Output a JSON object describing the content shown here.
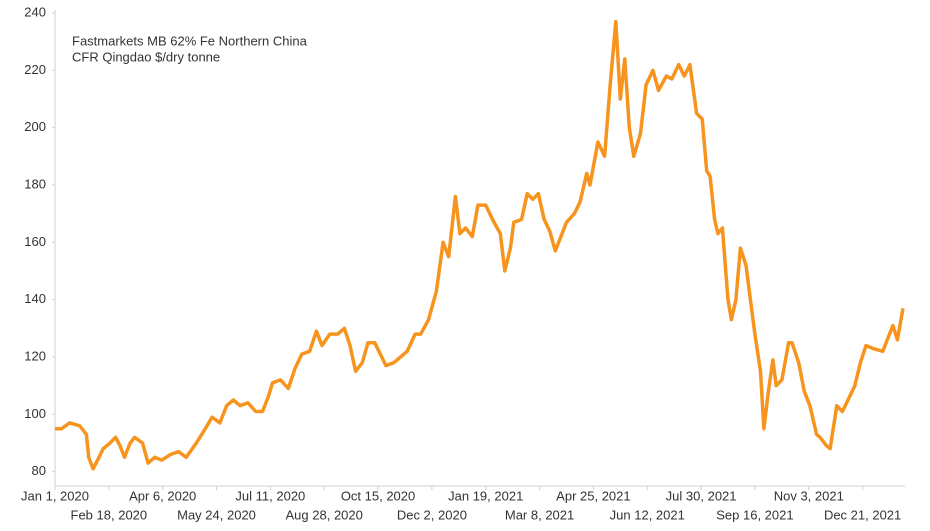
{
  "chart_data": {
    "type": "line",
    "annotation_lines": [
      "Fastmarkets MB 62% Fe Northern China",
      "CFR Qingdao $/dry tonne"
    ],
    "x": [
      "2020-01-01",
      "2020-01-07",
      "2020-01-14",
      "2020-01-23",
      "2020-01-29",
      "2020-01-31",
      "2020-02-04",
      "2020-02-08",
      "2020-02-13",
      "2020-02-19",
      "2020-02-24",
      "2020-02-28",
      "2020-03-03",
      "2020-03-08",
      "2020-03-12",
      "2020-03-19",
      "2020-03-24",
      "2020-03-30",
      "2020-04-05",
      "2020-04-13",
      "2020-04-20",
      "2020-04-27",
      "2020-05-06",
      "2020-05-14",
      "2020-05-20",
      "2020-05-27",
      "2020-06-02",
      "2020-06-08",
      "2020-06-14",
      "2020-06-21",
      "2020-06-28",
      "2020-07-04",
      "2020-07-09",
      "2020-07-13",
      "2020-07-20",
      "2020-07-27",
      "2020-08-02",
      "2020-08-08",
      "2020-08-15",
      "2020-08-21",
      "2020-08-26",
      "2020-09-02",
      "2020-09-09",
      "2020-09-15",
      "2020-09-20",
      "2020-09-25",
      "2020-10-01",
      "2020-10-06",
      "2020-10-12",
      "2020-10-17",
      "2020-10-22",
      "2020-10-29",
      "2020-11-04",
      "2020-11-10",
      "2020-11-17",
      "2020-11-22",
      "2020-11-29",
      "2020-12-06",
      "2020-12-12",
      "2020-12-17",
      "2020-12-23",
      "2020-12-27",
      "2021-01-01",
      "2021-01-07",
      "2021-01-12",
      "2021-01-19",
      "2021-01-25",
      "2021-02-01",
      "2021-02-05",
      "2021-02-10",
      "2021-02-13",
      "2021-02-20",
      "2021-02-25",
      "2021-03-02",
      "2021-03-07",
      "2021-03-12",
      "2021-03-17",
      "2021-03-22",
      "2021-03-26",
      "2021-04-01",
      "2021-04-08",
      "2021-04-13",
      "2021-04-19",
      "2021-04-22",
      "2021-04-29",
      "2021-05-05",
      "2021-05-10",
      "2021-05-15",
      "2021-05-19",
      "2021-05-23",
      "2021-05-27",
      "2021-05-31",
      "2021-06-06",
      "2021-06-11",
      "2021-06-17",
      "2021-06-22",
      "2021-06-29",
      "2021-07-04",
      "2021-07-10",
      "2021-07-15",
      "2021-07-20",
      "2021-07-26",
      "2021-07-31",
      "2021-08-04",
      "2021-08-07",
      "2021-08-11",
      "2021-08-14",
      "2021-08-18",
      "2021-08-23",
      "2021-08-26",
      "2021-08-30",
      "2021-09-03",
      "2021-09-08",
      "2021-09-12",
      "2021-09-16",
      "2021-09-21",
      "2021-09-24",
      "2021-09-28",
      "2021-10-02",
      "2021-10-05",
      "2021-10-10",
      "2021-10-16",
      "2021-10-19",
      "2021-10-25",
      "2021-10-30",
      "2021-11-04",
      "2021-11-10",
      "2021-11-13",
      "2021-11-19",
      "2021-11-22",
      "2021-11-28",
      "2021-12-03",
      "2021-12-08",
      "2021-12-14",
      "2021-12-19",
      "2021-12-24",
      "2021-12-30",
      "2022-01-08",
      "2022-01-13",
      "2022-01-17",
      "2022-01-21",
      "2022-01-26"
    ],
    "series": [
      {
        "color": "#f7941d",
        "values": [
          95,
          95,
          97,
          96,
          93,
          85,
          81,
          84,
          88,
          90,
          92,
          89,
          85,
          90,
          92,
          90,
          83,
          85,
          84,
          86,
          87,
          85,
          90,
          95,
          99,
          97,
          103,
          105,
          103,
          104,
          101,
          101,
          106,
          111,
          112,
          109,
          116,
          121,
          122,
          129,
          124,
          128,
          128,
          130,
          124,
          115,
          118,
          125,
          125,
          121,
          117,
          118,
          120,
          122,
          128,
          128,
          133,
          143,
          160,
          155,
          176,
          163,
          165,
          162,
          173,
          173,
          168,
          163,
          150,
          158,
          167,
          168,
          177,
          175,
          177,
          168,
          164,
          157,
          161,
          167,
          170,
          174,
          184,
          180,
          195,
          190,
          215,
          237,
          210,
          224,
          200,
          190,
          198,
          215,
          220,
          213,
          218,
          217,
          222,
          218,
          222,
          205,
          203,
          185,
          183,
          168,
          163,
          165,
          140,
          133,
          140,
          158,
          152,
          140,
          128,
          115,
          95,
          108,
          119,
          110,
          112,
          125,
          125,
          118,
          108,
          103,
          93,
          92,
          89,
          88,
          103,
          101,
          105,
          110,
          118,
          124,
          123,
          122,
          127,
          131,
          126,
          137
        ]
      }
    ],
    "xlim": [
      "2020-01-01",
      "2022-01-26"
    ],
    "xticks": [
      {
        "value": "2020-01-01",
        "label": "Jan 1, 2020"
      },
      {
        "value": "2020-02-18",
        "label": "Feb 18, 2020"
      },
      {
        "value": "2020-04-06",
        "label": "Apr 6, 2020"
      },
      {
        "value": "2020-05-24",
        "label": "May 24, 2020"
      },
      {
        "value": "2020-07-11",
        "label": "Jul 11, 2020"
      },
      {
        "value": "2020-08-28",
        "label": "Aug 28, 2020"
      },
      {
        "value": "2020-10-15",
        "label": "Oct 15, 2020"
      },
      {
        "value": "2020-12-02",
        "label": "Dec 2, 2020"
      },
      {
        "value": "2021-01-19",
        "label": "Jan 19, 2021"
      },
      {
        "value": "2021-03-08",
        "label": "Mar 8, 2021"
      },
      {
        "value": "2021-04-25",
        "label": "Apr 25, 2021"
      },
      {
        "value": "2021-06-12",
        "label": "Jun 12, 2021"
      },
      {
        "value": "2021-07-30",
        "label": "Jul 30, 2021"
      },
      {
        "value": "2021-09-16",
        "label": "Sep 16, 2021"
      },
      {
        "value": "2021-11-03",
        "label": "Nov 3, 2021"
      },
      {
        "value": "2021-12-21",
        "label": "Dec 21, 2021"
      }
    ],
    "ylim": [
      75,
      240
    ],
    "yticks": [
      80,
      100,
      120,
      140,
      160,
      180,
      200,
      220,
      240
    ]
  }
}
